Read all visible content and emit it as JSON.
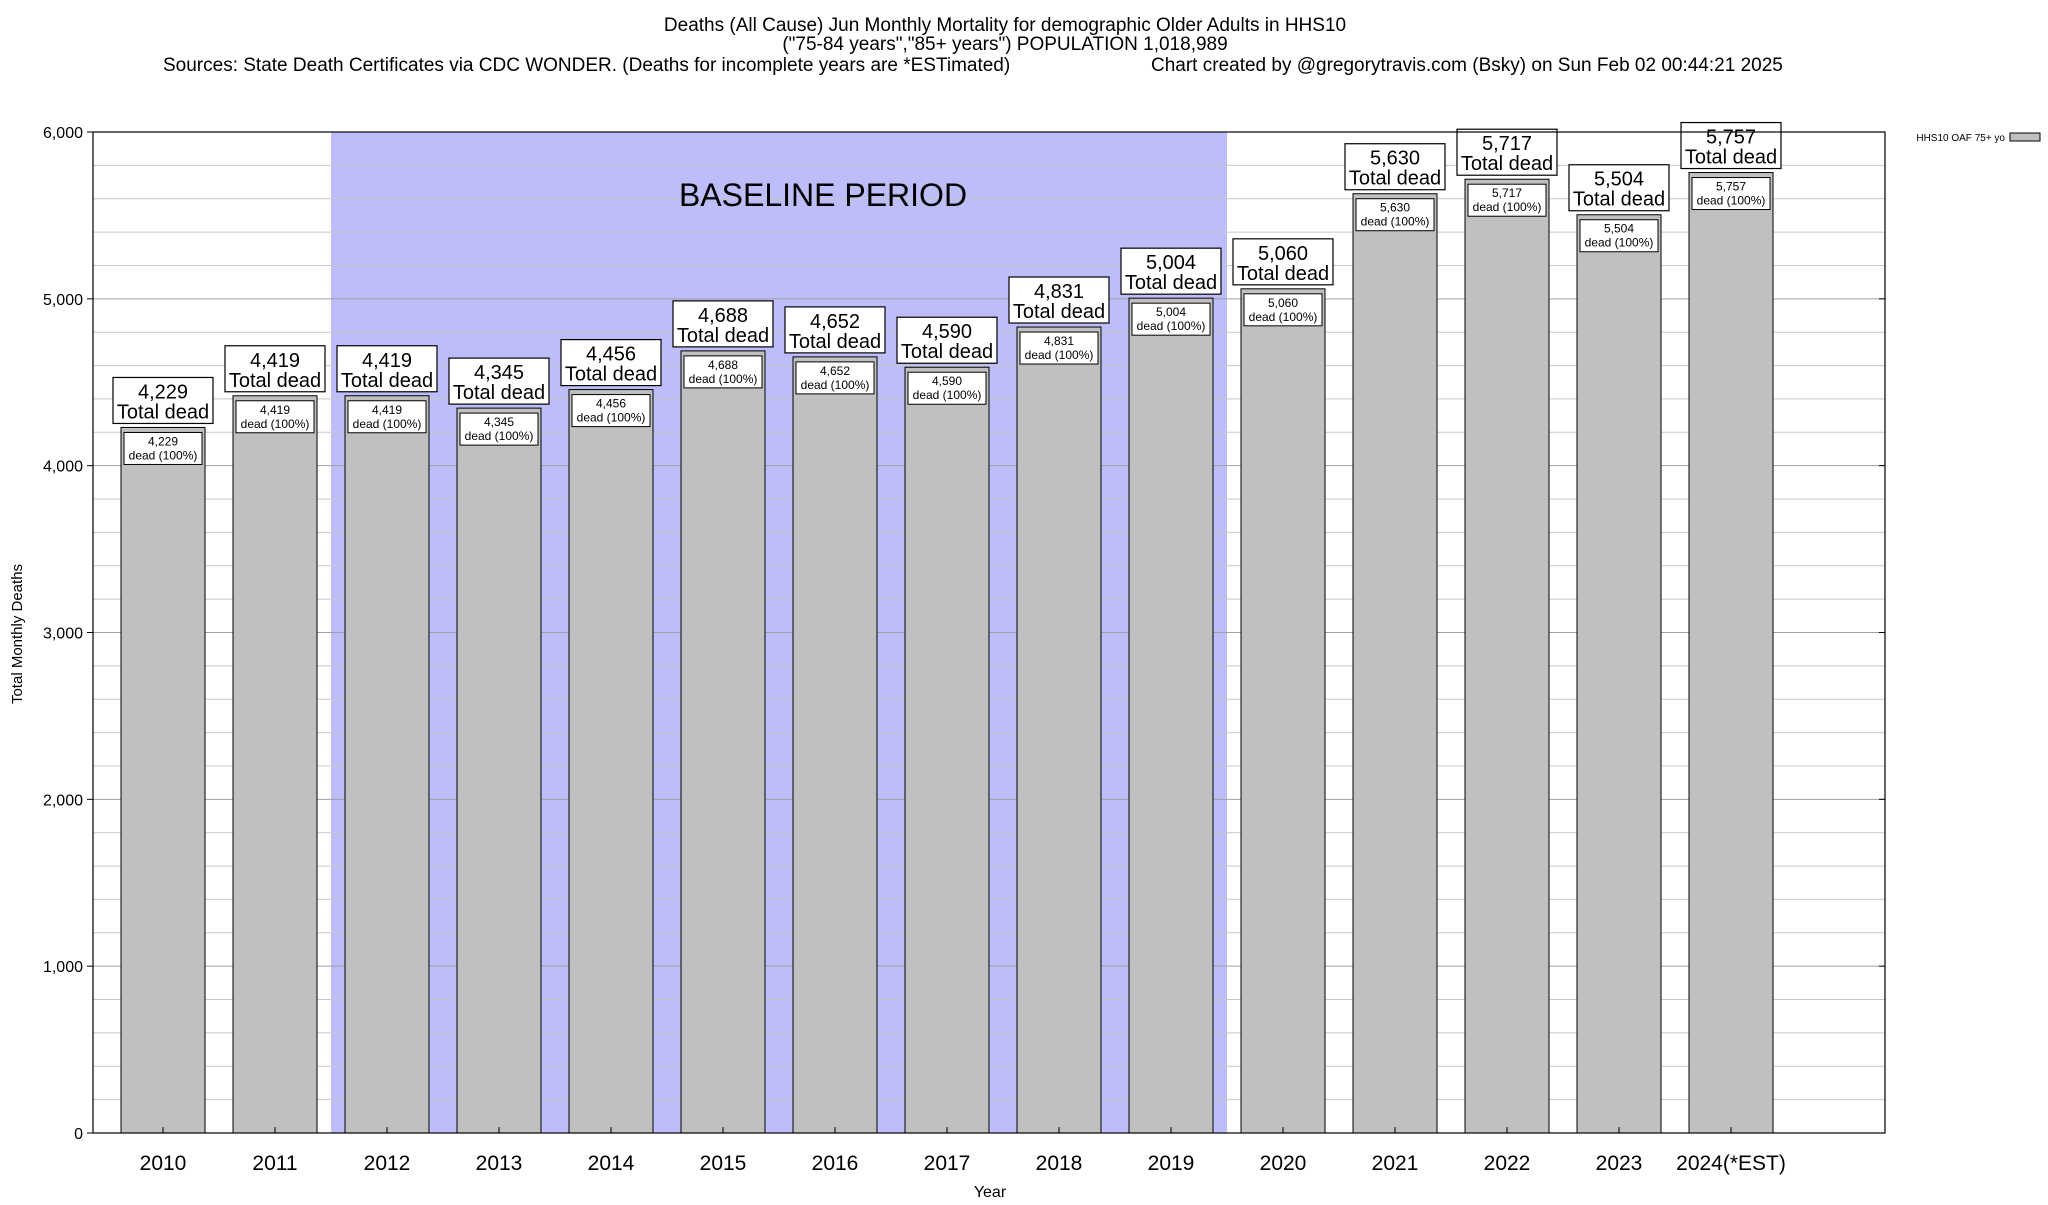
{
  "title_lines": [
    "Deaths (All Cause) Jun Monthly Mortality for demographic Older Adults in HHS10",
    "(\"75-84 years\",\"85+ years\") POPULATION 1,018,989"
  ],
  "sources_text": "Sources: State Death Certificates via CDC WONDER. (Deaths for incomplete years are *ESTimated)",
  "credit_text": "Chart created by @gregorytravis.com (Bsky) on Sun Feb 02 00:44:21 2025",
  "baseline_label": "BASELINE PERIOD",
  "total_dead_label": "Total dead",
  "inner_label_suffix": "dead (100%)",
  "legend_label": "HHS10 OAF 75+ yo",
  "colors": {
    "bar_fill": "#c0c0c0",
    "baseline_fill": "#bdbdfa",
    "grid": "#c8c8c8",
    "axis": "#000000"
  },
  "chart_data": {
    "type": "bar",
    "xlabel": "Year",
    "ylabel": "Total Monthly Deaths",
    "ylim": [
      0,
      6000
    ],
    "yticks": [
      0,
      1000,
      2000,
      3000,
      4000,
      5000,
      6000
    ],
    "ytick_labels": [
      "0",
      "1,000",
      "2,000",
      "3,000",
      "4,000",
      "5,000",
      "6,000"
    ],
    "minor_grid_step": 200,
    "categories": [
      "2010",
      "2011",
      "2012",
      "2013",
      "2014",
      "2015",
      "2016",
      "2017",
      "2018",
      "2019",
      "2020",
      "2021",
      "2022",
      "2023",
      "2024(*EST)"
    ],
    "values": [
      4229,
      4419,
      4419,
      4345,
      4456,
      4688,
      4652,
      4590,
      4831,
      5004,
      5060,
      5630,
      5717,
      5504,
      5757
    ],
    "value_labels": [
      "4,229",
      "4,419",
      "4,419",
      "4,345",
      "4,456",
      "4,688",
      "4,652",
      "4,590",
      "4,831",
      "5,004",
      "5,060",
      "5,630",
      "5,717",
      "5,504",
      "5,757"
    ],
    "baseline_period": [
      "2012",
      "2019"
    ],
    "legend": [
      {
        "name": "HHS10 OAF 75+ yo"
      }
    ],
    "legend_position": "top-right"
  }
}
